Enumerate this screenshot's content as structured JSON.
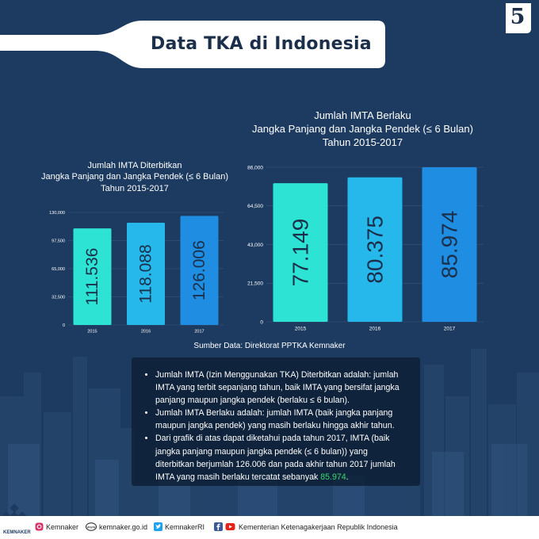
{
  "header": {
    "title": "Data TKA di Indonesia",
    "page_number": "5"
  },
  "chart_data": [
    {
      "type": "bar",
      "title_lines": [
        "Jumlah IMTA Diterbitkan",
        "Jangka Panjang dan Jangka Pendek (≤ 6 Bulan)",
        "Tahun 2015-2017"
      ],
      "categories": [
        "2015",
        "2016",
        "2017"
      ],
      "values": [
        111536,
        118088,
        126006
      ],
      "value_labels": [
        "111.536",
        "118.088",
        "126.006"
      ],
      "ylim": [
        0,
        130000
      ],
      "yticks": [
        0,
        32500,
        65000,
        97500,
        130000
      ],
      "ytick_labels": [
        "0",
        "32,500",
        "65,000",
        "97,500",
        "130,000"
      ],
      "colors": [
        "#2de4d4",
        "#26b8eb",
        "#1f8ee2"
      ],
      "grid": true
    },
    {
      "type": "bar",
      "title_lines": [
        "Jumlah IMTA Berlaku",
        "Jangka Panjang dan Jangka Pendek (≤ 6 Bulan)",
        "Tahun 2015-2017"
      ],
      "categories": [
        "2015",
        "2016",
        "2017"
      ],
      "values": [
        77149,
        80375,
        85974
      ],
      "value_labels": [
        "77.149",
        "80.375",
        "85.974"
      ],
      "ylim": [
        0,
        86000
      ],
      "yticks": [
        0,
        21500,
        43000,
        64500,
        86000
      ],
      "ytick_labels": [
        "0",
        "21,500",
        "43,000",
        "64,500",
        "86,000"
      ],
      "colors": [
        "#2de4d4",
        "#26b8eb",
        "#1f8ee2"
      ],
      "grid": true
    }
  ],
  "source": "Sumber Data: Direktorat PPTKA Kemnaker",
  "notes": [
    {
      "text": "Jumlah IMTA (Izin Menggunakan TKA) Diterbitkan adalah: jumlah IMTA yang terbit sepanjang tahun, baik IMTA yang bersifat jangka panjang maupun jangka pendek (berlaku ≤ 6 bulan)."
    },
    {
      "text": "Jumlah IMTA Berlaku adalah: jumlah IMTA (baik jangka panjang maupun jangka pendek) yang masih berlaku hingga akhir tahun."
    },
    {
      "text": "Dari grafik di atas dapat diketahui pada tahun 2017, IMTA (baik jangka panjang maupun jangka pendek (≤ 6 bulan)) yang diterbitkan berjumlah 126.006 dan pada akhir tahun 2017 jumlah IMTA yang masih berlaku tercatat sebanyak ",
      "highlight": "85.974",
      "end": "."
    }
  ],
  "footer": {
    "logo_label": "KEMNAKER",
    "instagram": "Kemnaker",
    "website": "kemnaker.go.id",
    "twitter": "KemnakerRI",
    "facebook_youtube": "Kementerian Ketenagakerjaan Republik Indonesia"
  },
  "colors": {
    "background": "#1d3b60",
    "banner": "#ffffff",
    "highlight": "#39d96b"
  },
  "icons": [
    "instagram-icon",
    "globe-icon",
    "twitter-icon",
    "facebook-icon",
    "youtube-icon"
  ]
}
